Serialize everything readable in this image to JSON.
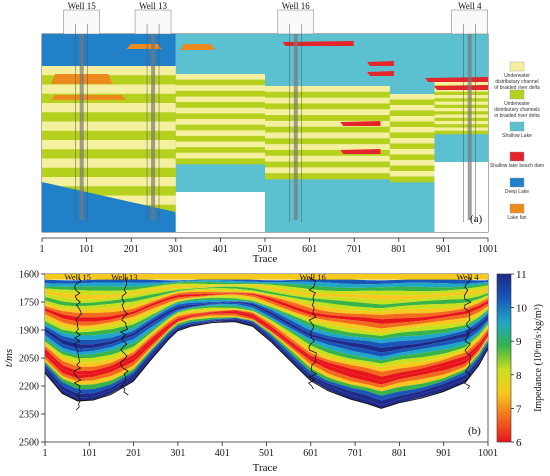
{
  "panel_a": {
    "panel_label": "(a)",
    "xlabel": "Trace",
    "x_ticks": [
      1,
      101,
      201,
      301,
      401,
      501,
      601,
      701,
      801,
      901,
      1001
    ],
    "wells": [
      {
        "name": "Well 15",
        "trace": 90
      },
      {
        "name": "Well 13",
        "trace": 250
      },
      {
        "name": "Well 16",
        "trace": 570
      },
      {
        "name": "Well 4",
        "trace": 960
      }
    ],
    "legend": [
      {
        "label": "Underwater distributary channel of braided river delta",
        "color": "#f5f0a0"
      },
      {
        "label": "Underwater distributary channels in braided river delta",
        "color": "#b5d11e"
      },
      {
        "label": "Shallow Lake",
        "color": "#5bc0cf"
      },
      {
        "label": "Shallow lake beach dam",
        "color": "#e4252b"
      },
      {
        "label": "Deep Lake",
        "color": "#2080c8"
      },
      {
        "label": "Lake fan",
        "color": "#ec8a1e"
      }
    ]
  },
  "chart_data": {
    "type": "heatmap",
    "panel_label": "(b)",
    "xlabel": "Trace",
    "ylabel": "t/ms",
    "x_ticks": [
      1,
      101,
      201,
      301,
      401,
      501,
      601,
      701,
      801,
      901,
      1001
    ],
    "y_ticks": [
      1600,
      1750,
      1900,
      2050,
      2200,
      2350,
      2500
    ],
    "xlim": [
      1,
      1001
    ],
    "ylim": [
      1600,
      2500
    ],
    "y_inverted": true,
    "colorbar": {
      "label": "Impedance (10⁶m/s·kg/m³)",
      "range": [
        6,
        11
      ],
      "ticks": [
        6,
        7,
        8,
        9,
        10,
        11
      ],
      "colors": [
        "#e8141c",
        "#f26a1e",
        "#f7c81e",
        "#c9e01e",
        "#37b34a",
        "#1fa6c8",
        "#1a56b8",
        "#1e2a8a"
      ]
    },
    "wells": [
      {
        "name": "Well 15",
        "trace": 75
      },
      {
        "name": "Well 13",
        "trace": 180
      },
      {
        "name": "Well 16",
        "trace": 605
      },
      {
        "name": "Well 4",
        "trace": 955
      }
    ],
    "bottom_surface": {
      "trace": [
        1,
        40,
        75,
        110,
        150,
        200,
        240,
        280,
        300,
        330,
        380,
        430,
        470,
        510,
        540,
        570,
        600,
        640,
        690,
        730,
        760,
        800,
        850,
        900,
        950,
        980,
        1001
      ],
      "time": [
        2130,
        2240,
        2280,
        2275,
        2245,
        2175,
        2060,
        1950,
        1905,
        1880,
        1860,
        1855,
        1880,
        1960,
        2030,
        2100,
        2170,
        2225,
        2270,
        2295,
        2320,
        2290,
        2265,
        2230,
        2180,
        2090,
        2000
      ]
    }
  }
}
